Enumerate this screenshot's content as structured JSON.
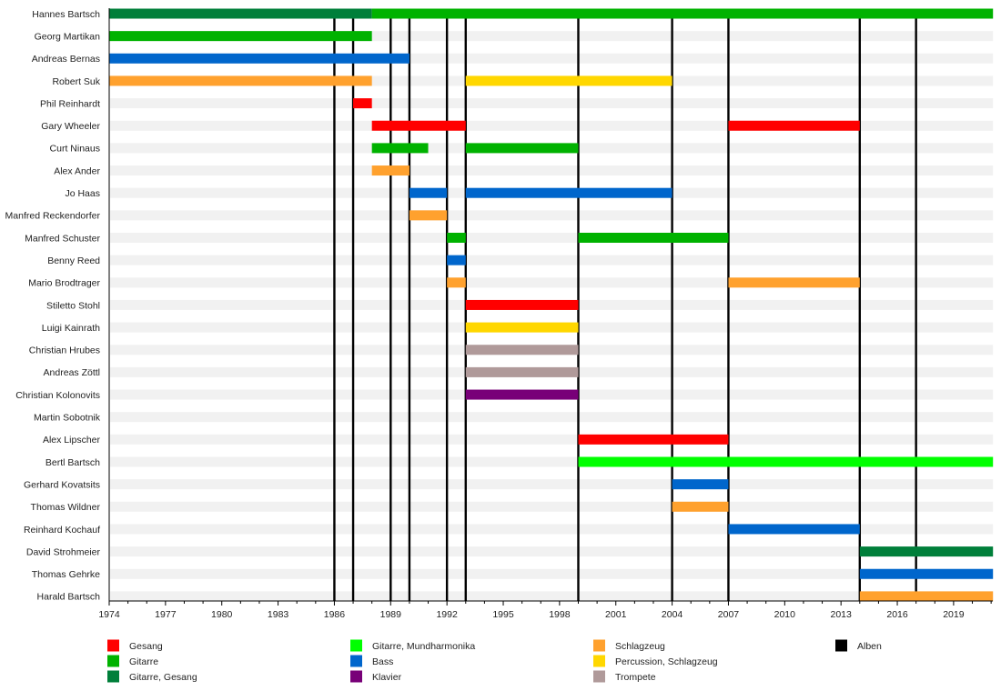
{
  "chart_data": {
    "type": "timeline",
    "title": "",
    "xlabel": "",
    "ylabel": "",
    "xlim": [
      1974,
      2021.1
    ],
    "x_ticks": [
      1974,
      1977,
      1980,
      1983,
      1986,
      1989,
      1992,
      1995,
      1998,
      2001,
      2004,
      2007,
      2010,
      2013,
      2016,
      2019
    ],
    "grid": false,
    "legend_position": "bottom",
    "roles": {
      "Gesang": "#ff0000",
      "Gitarre": "#00b200",
      "Gitarre, Gesang": "#007f3a",
      "Gitarre, Mundharmonika": "#00ff00",
      "Bass": "#0066cc",
      "Klavier": "#780078",
      "Schlagzeug": "#ffa12e",
      "Percussion, Schlagzeug": "#ffd700",
      "Trompete": "#b09a9a",
      "Alben": "#000000"
    },
    "legend": [
      [
        "Gesang",
        "Gitarre",
        "Gitarre, Gesang"
      ],
      [
        "Gitarre, Mundharmonika",
        "Bass",
        "Klavier"
      ],
      [
        "Schlagzeug",
        "Percussion, Schlagzeug",
        "Trompete"
      ],
      [
        "Alben"
      ]
    ],
    "albums": [
      1986,
      1987,
      1989,
      1990,
      1992,
      1993,
      1999,
      2004,
      2007,
      2014,
      2017
    ],
    "members": [
      {
        "name": "Hannes Bartsch",
        "periods": [
          {
            "role": "Gitarre, Gesang",
            "start": 1974,
            "end": 1988
          },
          {
            "role": "Gitarre",
            "start": 1988,
            "end": 2021.1
          }
        ]
      },
      {
        "name": "Georg Martikan",
        "periods": [
          {
            "role": "Gitarre",
            "start": 1974,
            "end": 1988
          }
        ]
      },
      {
        "name": "Andreas Bernas",
        "periods": [
          {
            "role": "Bass",
            "start": 1974,
            "end": 1990
          }
        ]
      },
      {
        "name": "Robert Suk",
        "periods": [
          {
            "role": "Schlagzeug",
            "start": 1974,
            "end": 1988
          },
          {
            "role": "Percussion, Schlagzeug",
            "start": 1993,
            "end": 2004
          }
        ]
      },
      {
        "name": "Phil Reinhardt",
        "periods": [
          {
            "role": "Gesang",
            "start": 1987,
            "end": 1988
          }
        ]
      },
      {
        "name": "Gary Wheeler",
        "periods": [
          {
            "role": "Gesang",
            "start": 1988,
            "end": 1993
          },
          {
            "role": "Gesang",
            "start": 2007,
            "end": 2014
          }
        ]
      },
      {
        "name": "Curt Ninaus",
        "periods": [
          {
            "role": "Gitarre",
            "start": 1988,
            "end": 1991
          },
          {
            "role": "Gitarre",
            "start": 1993,
            "end": 1999
          }
        ]
      },
      {
        "name": "Alex Ander",
        "periods": [
          {
            "role": "Schlagzeug",
            "start": 1988,
            "end": 1990
          }
        ]
      },
      {
        "name": "Jo Haas",
        "periods": [
          {
            "role": "Bass",
            "start": 1990,
            "end": 1992
          },
          {
            "role": "Bass",
            "start": 1993,
            "end": 2004
          }
        ]
      },
      {
        "name": "Manfred Reckendorfer",
        "periods": [
          {
            "role": "Schlagzeug",
            "start": 1990,
            "end": 1992
          }
        ]
      },
      {
        "name": "Manfred Schuster",
        "periods": [
          {
            "role": "Gitarre",
            "start": 1992,
            "end": 1993
          },
          {
            "role": "Gitarre",
            "start": 1999,
            "end": 2007
          }
        ]
      },
      {
        "name": "Benny Reed",
        "periods": [
          {
            "role": "Bass",
            "start": 1992,
            "end": 1993
          }
        ]
      },
      {
        "name": "Mario Brodtrager",
        "periods": [
          {
            "role": "Schlagzeug",
            "start": 1992,
            "end": 1993
          },
          {
            "role": "Schlagzeug",
            "start": 2007,
            "end": 2014
          }
        ]
      },
      {
        "name": "Stiletto Stohl",
        "periods": [
          {
            "role": "Gesang",
            "start": 1993,
            "end": 1999
          }
        ]
      },
      {
        "name": "Luigi Kainrath",
        "periods": [
          {
            "role": "Percussion, Schlagzeug",
            "start": 1993,
            "end": 1999
          }
        ]
      },
      {
        "name": "Christian Hrubes",
        "periods": [
          {
            "role": "Trompete",
            "start": 1993,
            "end": 1999
          }
        ]
      },
      {
        "name": "Andreas Zöttl",
        "periods": [
          {
            "role": "Trompete",
            "start": 1993,
            "end": 1999
          }
        ]
      },
      {
        "name": "Christian Kolonovits",
        "periods": [
          {
            "role": "Klavier",
            "start": 1993,
            "end": 1999
          }
        ]
      },
      {
        "name": "Martin Sobotnik",
        "periods": []
      },
      {
        "name": "Alex Lipscher",
        "periods": [
          {
            "role": "Gesang",
            "start": 1999,
            "end": 2007
          }
        ]
      },
      {
        "name": "Bertl Bartsch",
        "periods": [
          {
            "role": "Gitarre, Mundharmonika",
            "start": 1999,
            "end": 2021.1
          }
        ]
      },
      {
        "name": "Gerhard Kovatsits",
        "periods": [
          {
            "role": "Bass",
            "start": 2004,
            "end": 2007
          }
        ]
      },
      {
        "name": "Thomas Wildner",
        "periods": [
          {
            "role": "Schlagzeug",
            "start": 2004,
            "end": 2007
          }
        ]
      },
      {
        "name": "Reinhard Kochauf",
        "periods": [
          {
            "role": "Bass",
            "start": 2007,
            "end": 2014
          }
        ]
      },
      {
        "name": "David Strohmeier",
        "periods": [
          {
            "role": "Gitarre, Gesang",
            "start": 2014,
            "end": 2021.1
          }
        ]
      },
      {
        "name": "Thomas Gehrke",
        "periods": [
          {
            "role": "Bass",
            "start": 2014,
            "end": 2021.1
          }
        ]
      },
      {
        "name": "Harald Bartsch",
        "periods": [
          {
            "role": "Schlagzeug",
            "start": 2014,
            "end": 2021.1
          }
        ]
      }
    ]
  }
}
